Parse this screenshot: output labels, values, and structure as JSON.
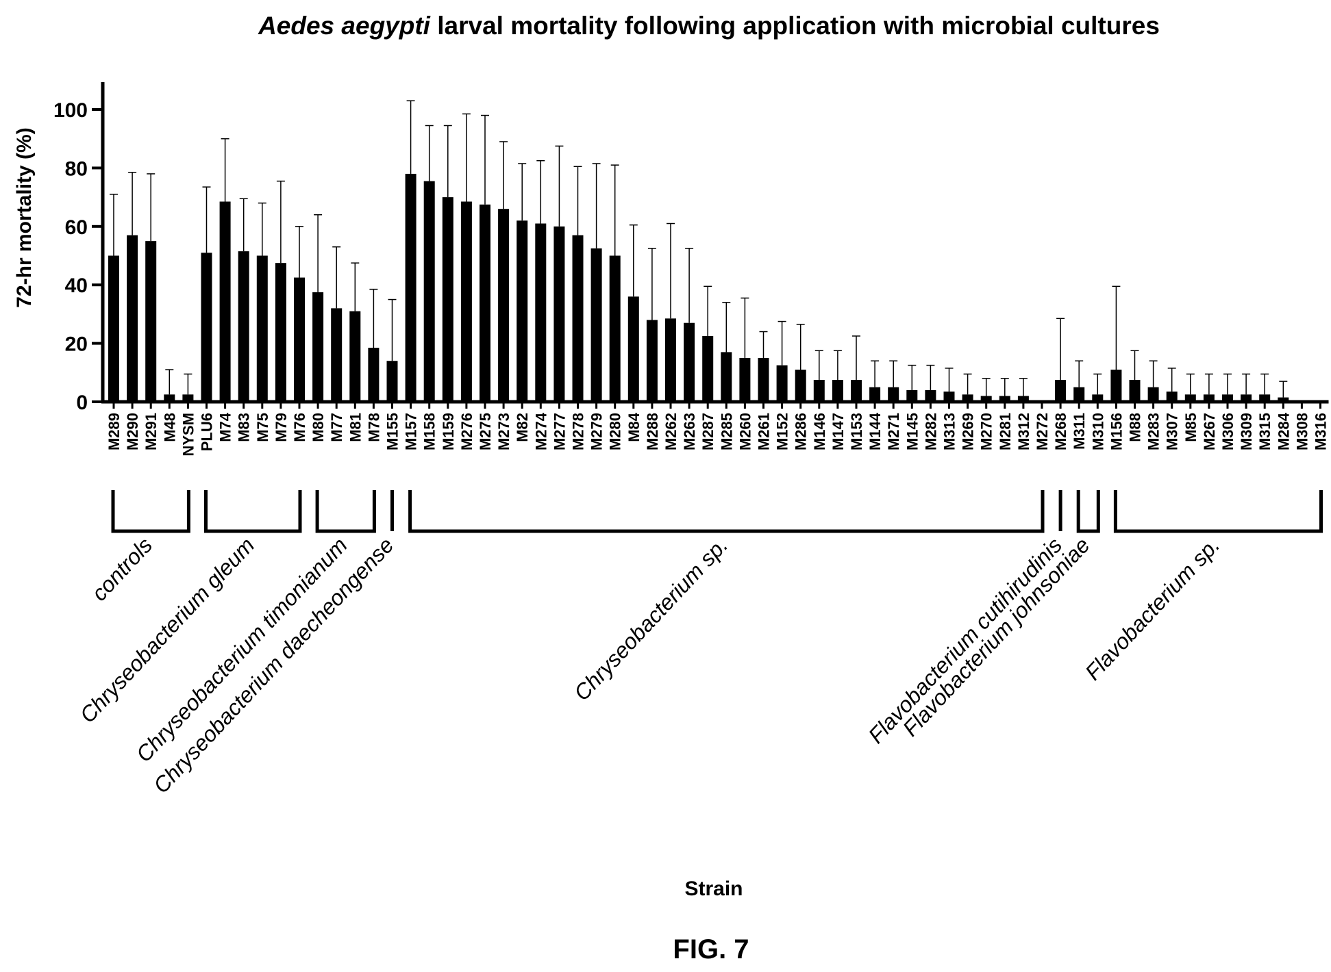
{
  "chart_data": {
    "type": "bar",
    "title_italic": "Aedes aegypti",
    "title_rest": " larval mortality following application with microbial cultures",
    "ylabel": "72-hr mortality (%)",
    "xlabel": "Strain",
    "ylim": [
      0,
      110
    ],
    "yticks": [
      0,
      20,
      40,
      60,
      80,
      100
    ],
    "error_bars": "one-sided upward",
    "categories": [
      "M289",
      "M290",
      "M291",
      "M48",
      "NYSM",
      "PLU6",
      "M74",
      "M83",
      "M75",
      "M79",
      "M76",
      "M80",
      "M77",
      "M81",
      "M78",
      "M155",
      "M157",
      "M158",
      "M159",
      "M276",
      "M275",
      "M273",
      "M82",
      "M274",
      "M277",
      "M278",
      "M279",
      "M280",
      "M84",
      "M288",
      "M262",
      "M263",
      "M287",
      "M285",
      "M260",
      "M261",
      "M152",
      "M286",
      "M146",
      "M147",
      "M153",
      "M144",
      "M271",
      "M145",
      "M282",
      "M313",
      "M269",
      "M270",
      "M281",
      "M312",
      "M272",
      "M268",
      "M311",
      "M310",
      "M156",
      "M88",
      "M283",
      "M307",
      "M85",
      "M267",
      "M306",
      "M309",
      "M315",
      "M284",
      "M308",
      "M316"
    ],
    "values": [
      50,
      57,
      55,
      2.5,
      2.5,
      51,
      68.5,
      51.5,
      50,
      47.5,
      42.5,
      37.5,
      32,
      31,
      18.5,
      14,
      78,
      75.5,
      70,
      68.5,
      67.5,
      66,
      62,
      61,
      60,
      57,
      52.5,
      50,
      36,
      28,
      28.5,
      27,
      22.5,
      17,
      15,
      15,
      12.5,
      11,
      7.5,
      7.5,
      7.5,
      5,
      5,
      4,
      4,
      3.5,
      2.5,
      2,
      2,
      2,
      0,
      7.5,
      5,
      2.5,
      11,
      7.5,
      5,
      3.5,
      2.5,
      2.5,
      2.5,
      2.5,
      2.5,
      1.5,
      0,
      0
    ],
    "error_upper": [
      71,
      78.5,
      78,
      11,
      9.5,
      73.5,
      90,
      69.5,
      68,
      75.5,
      60,
      64,
      53,
      47.5,
      38.5,
      35,
      103,
      94.5,
      94.5,
      98.5,
      98,
      89,
      81.5,
      82.5,
      87.5,
      80.5,
      81.5,
      81,
      60.5,
      52.5,
      61,
      52.5,
      39.5,
      34,
      35.5,
      24,
      27.5,
      26.5,
      17.5,
      17.5,
      22.5,
      14,
      14,
      12.5,
      12.5,
      11.5,
      9.5,
      8,
      8,
      8,
      0,
      28.5,
      14,
      9.5,
      39.5,
      17.5,
      14,
      11.5,
      9.5,
      9.5,
      9.5,
      9.5,
      9.5,
      7,
      0,
      0
    ],
    "groups": [
      {
        "label": "controls",
        "start": "M289",
        "end": "NYSM"
      },
      {
        "label": "Chryseobacterium gleum",
        "start": "PLU6",
        "end": "M76"
      },
      {
        "label": "Chryseobacterium timonianum",
        "start": "M80",
        "end": "M78"
      },
      {
        "label": "Chryseobacterium daecheongense",
        "start": "M155",
        "end": "M155"
      },
      {
        "label": "Chryseobacterium sp.",
        "start": "M157",
        "end": "M272"
      },
      {
        "label": "Flavobacterium cutihirudinis",
        "start": "M268",
        "end": "M268"
      },
      {
        "label": "Flavobacterium johnsoniae",
        "start": "M311",
        "end": "M310"
      },
      {
        "label": "Flavobacterium sp.",
        "start": "M156",
        "end": "M316"
      }
    ],
    "colors": {
      "bar": "#000000",
      "axis": "#000000",
      "background": "#ffffff"
    }
  },
  "figure_label": "FIG. 7"
}
